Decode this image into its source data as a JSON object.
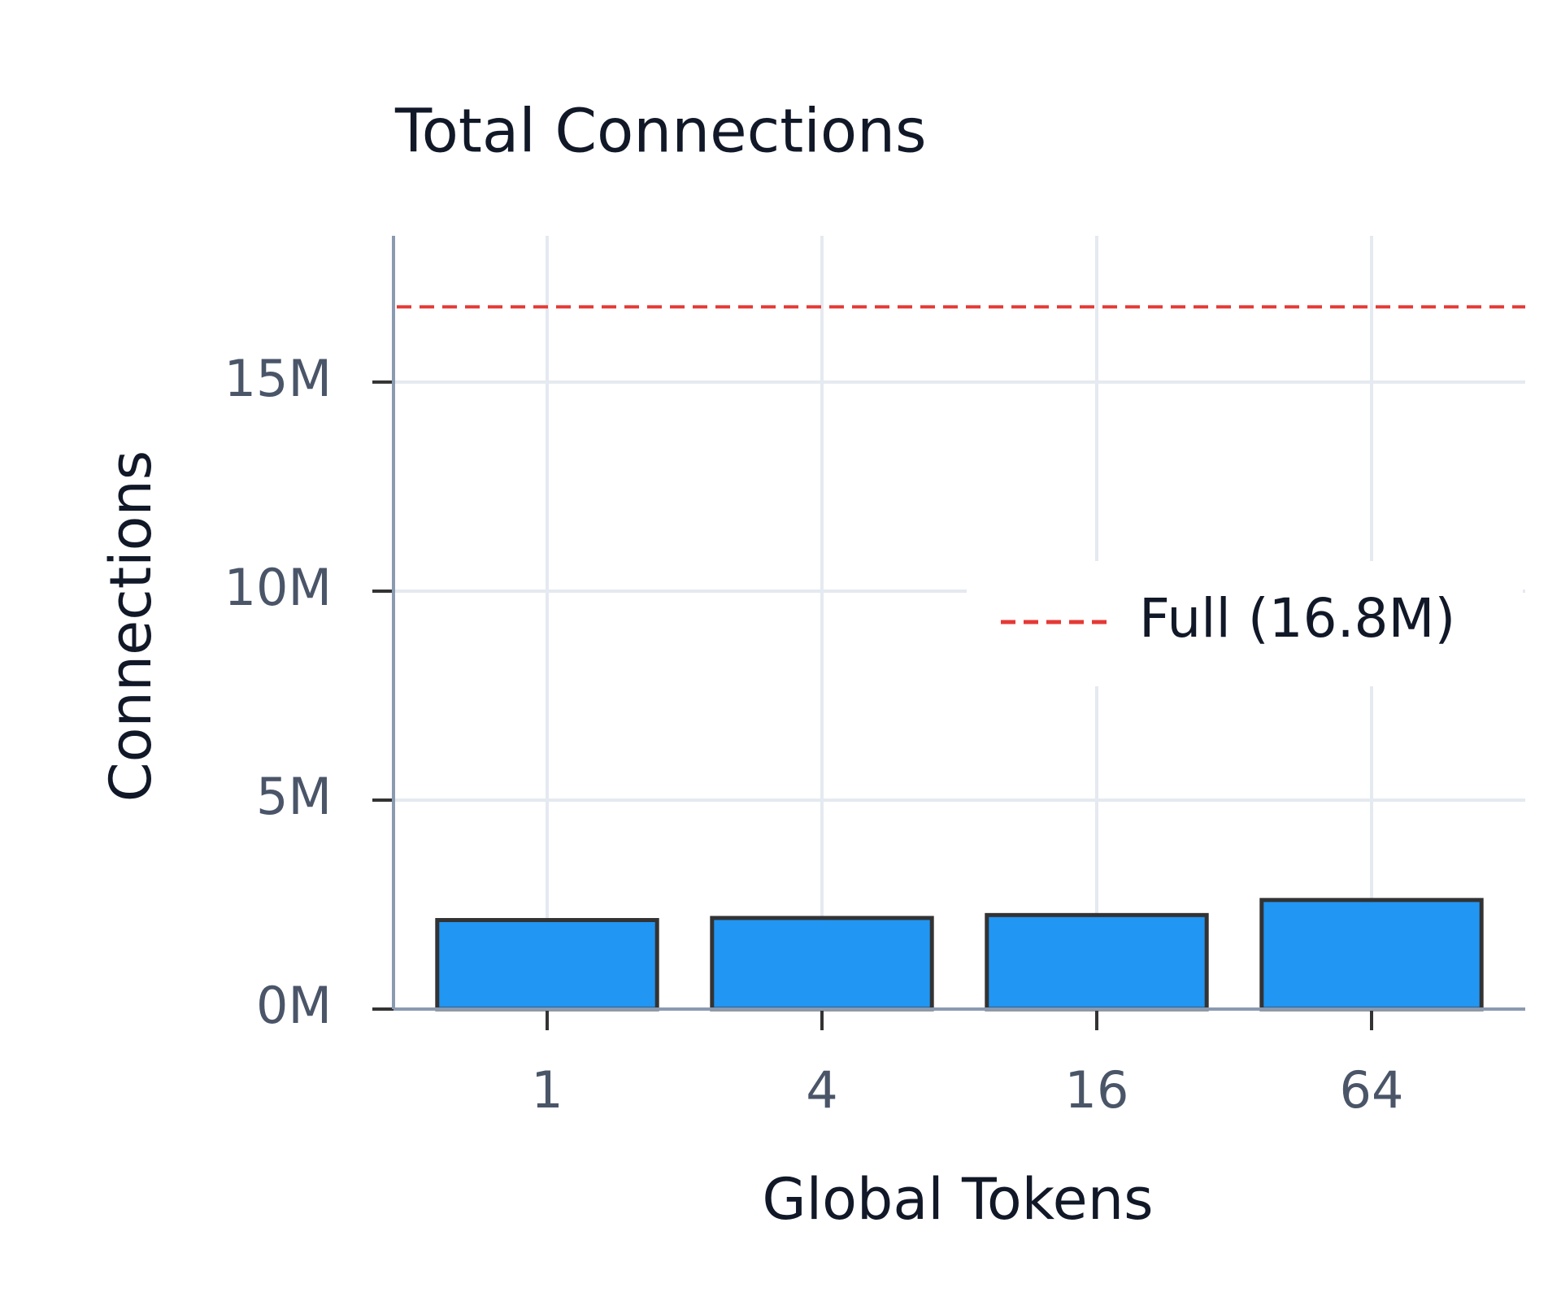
{
  "chart_data": {
    "type": "bar",
    "title": "Total Connections",
    "x_label": "Global Tokens",
    "y_label": "Connections",
    "categories": [
      "1",
      "4",
      "16",
      "64"
    ],
    "values": [
      2.13,
      2.18,
      2.25,
      2.61
    ],
    "color": "#2196f3",
    "edge_color": "#333333",
    "ylim": [
      0,
      18.5
    ],
    "yticks": [
      {
        "value": 0,
        "label": "0M"
      },
      {
        "value": 5,
        "label": "5M"
      },
      {
        "value": 10,
        "label": "10M"
      },
      {
        "value": 15,
        "label": "15M"
      }
    ],
    "grid": true,
    "reference_lines": [
      {
        "value": 16.8,
        "label": "Full (16.8M)",
        "color": "#e53935",
        "style": "dashed"
      }
    ],
    "legend": "right"
  }
}
